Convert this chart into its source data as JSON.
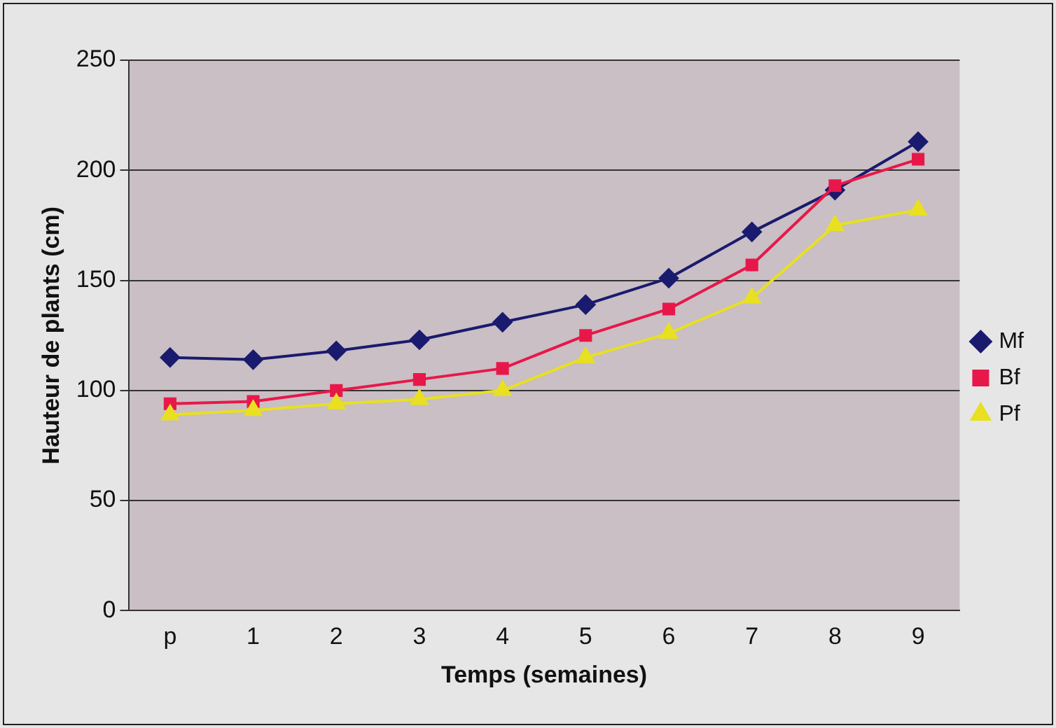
{
  "chart_data": {
    "type": "line",
    "xlabel": "Temps (semaines)",
    "ylabel": "Hauteur de plants (cm)",
    "categories": [
      "p",
      "1",
      "2",
      "3",
      "4",
      "5",
      "6",
      "7",
      "8",
      "9"
    ],
    "series": [
      {
        "name": "Mf",
        "color": "#1a1a6e",
        "marker": "diamond",
        "values": [
          115,
          114,
          118,
          123,
          131,
          139,
          151,
          172,
          191,
          213
        ]
      },
      {
        "name": "Bf",
        "color": "#e8174a",
        "marker": "square",
        "values": [
          94,
          95,
          100,
          105,
          110,
          125,
          137,
          157,
          193,
          205
        ]
      },
      {
        "name": "Pf",
        "color": "#e8e020",
        "marker": "triangle",
        "values": [
          89,
          91,
          94,
          96,
          100,
          115,
          126,
          142,
          175,
          182
        ]
      }
    ],
    "ylim": [
      0,
      250
    ],
    "yticks": [
      0,
      50,
      100,
      150,
      200,
      250
    ],
    "grid": "y",
    "legend": "right"
  }
}
